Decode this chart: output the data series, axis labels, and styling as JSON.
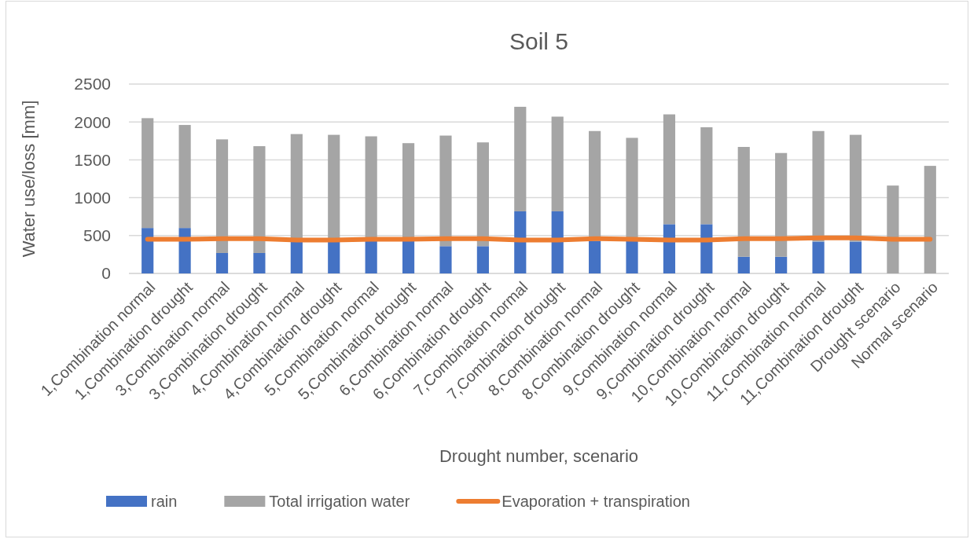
{
  "chart_data": {
    "type": "bar",
    "stacked": true,
    "title": "Soil 5",
    "xlabel": "Drought number, scenario",
    "ylabel": "Water use/loss [mm]",
    "categories": [
      "1,Combination normal",
      "1,Combination drought",
      "3,Combination normal",
      "3,Combination drought",
      "4,Combination normal",
      "4,Combination drought",
      "5,Combination normal",
      "5,Combination drought",
      "6,Combination normal",
      "6,Combination drought",
      "7,Combination normal",
      "7,Combination drought",
      "8,Combination normal",
      "8,Combination drought",
      "9,Combination normal",
      "9,Combination drought",
      "10,Combination normal",
      "10,Combination drought",
      "11,Combination normal",
      "11,Combination drought",
      "Drought scenario",
      "Normal scenario"
    ],
    "series": [
      {
        "name": "rain",
        "color": "#4472c4",
        "values": [
          600,
          600,
          270,
          270,
          430,
          430,
          430,
          430,
          360,
          360,
          820,
          820,
          430,
          430,
          650,
          650,
          220,
          220,
          420,
          420,
          0,
          0
        ]
      },
      {
        "name": "Total irrigation water",
        "color": "#a5a5a5",
        "values": [
          1450,
          1360,
          1500,
          1410,
          1410,
          1400,
          1380,
          1290,
          1460,
          1370,
          1380,
          1250,
          1450,
          1360,
          1450,
          1280,
          1450,
          1370,
          1460,
          1410,
          1160,
          1420
        ]
      },
      {
        "name": "Evaporation + transpiration",
        "type": "line",
        "color": "#ed7d31",
        "values": [
          450,
          450,
          460,
          460,
          440,
          440,
          450,
          450,
          460,
          460,
          440,
          440,
          460,
          450,
          440,
          440,
          460,
          460,
          470,
          470,
          450,
          450
        ]
      }
    ],
    "ylim": [
      0,
      2500
    ],
    "yticks": [
      0,
      500,
      1000,
      1500,
      2000,
      2500
    ],
    "grid": "y",
    "legend": "bottom"
  }
}
